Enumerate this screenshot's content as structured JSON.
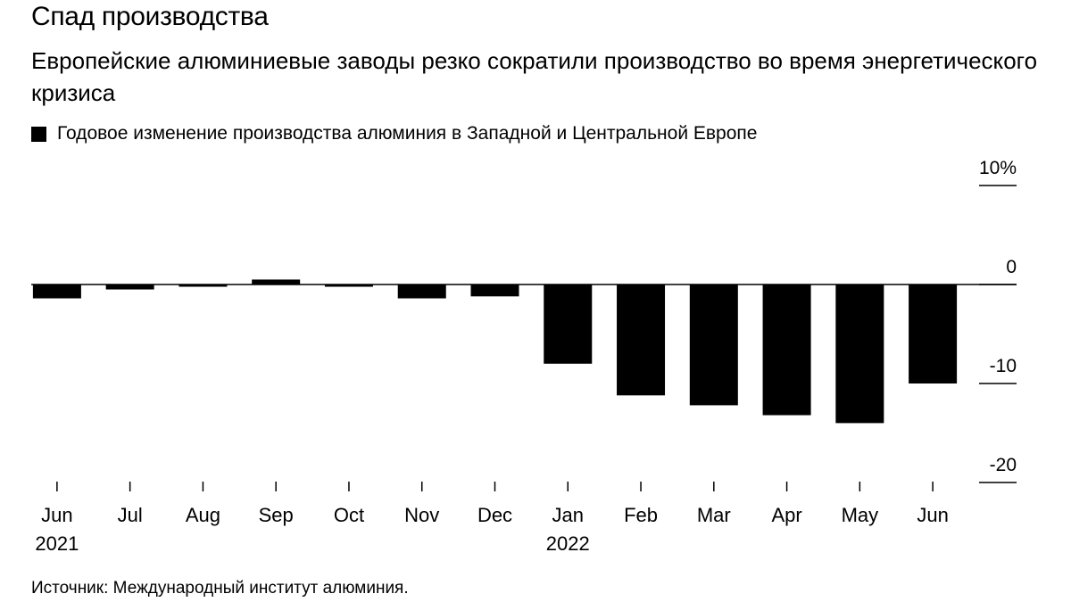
{
  "header": {
    "title": "Спад производства",
    "subtitle": "Европейские алюминиевые заводы резко сократили производство во время энергетического кризиса"
  },
  "legend": {
    "label": "Годовое изменение производства алюминия в Западной и Центральной Европе",
    "color": "#000000"
  },
  "footer": {
    "source": "Источник: Международный институт алюминия."
  },
  "chart_data": {
    "type": "bar",
    "categories": [
      "Jun",
      "Jul",
      "Aug",
      "Sep",
      "Oct",
      "Nov",
      "Dec",
      "Jan",
      "Feb",
      "Mar",
      "Apr",
      "May",
      "Jun"
    ],
    "year_labels": [
      "2021",
      "",
      "",
      "",
      "",
      "",
      "",
      "2022",
      "",
      "",
      "",
      "",
      ""
    ],
    "series": [
      {
        "name": "Годовое изменение производства алюминия в Западной и Центральной Европе",
        "color": "#000000",
        "values": [
          -1.4,
          -0.5,
          -0.2,
          0.5,
          -0.2,
          -1.4,
          -1.2,
          -8.0,
          -11.2,
          -12.2,
          -13.2,
          -14.0,
          -10.0
        ]
      }
    ],
    "y_ticks": [
      10,
      0,
      -10,
      -20
    ],
    "y_tick_labels": [
      "10%",
      "0",
      "-10",
      "-20"
    ],
    "ylim": [
      -20,
      10
    ],
    "grid": false,
    "y_axis_position": "right"
  }
}
